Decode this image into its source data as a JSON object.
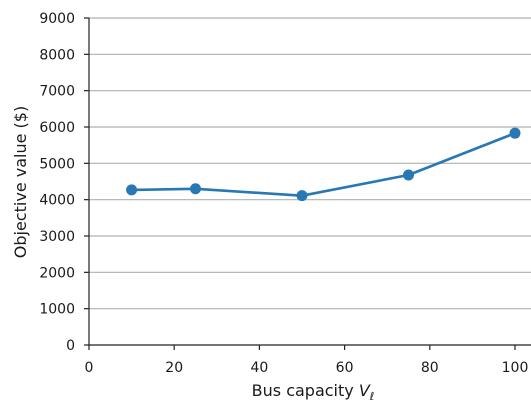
{
  "chart_data": {
    "type": "line",
    "title": "",
    "xlabel": "Bus capacity ",
    "xlabel_symbol": "V",
    "xlabel_subscript": "ℓ",
    "ylabel": "Objective value ($)",
    "xlim": [
      0,
      100
    ],
    "ylim": [
      0,
      9000
    ],
    "xticks": [
      0,
      20,
      40,
      60,
      80,
      100
    ],
    "yticks": [
      0,
      1000,
      2000,
      3000,
      4000,
      5000,
      6000,
      7000,
      8000,
      9000
    ],
    "grid": "horizontal",
    "legend": "none",
    "series": [
      {
        "color": "#2878b5",
        "x": [
          10,
          25,
          50,
          75,
          100
        ],
        "y": [
          4270,
          4300,
          4110,
          4680,
          5830
        ]
      }
    ]
  }
}
